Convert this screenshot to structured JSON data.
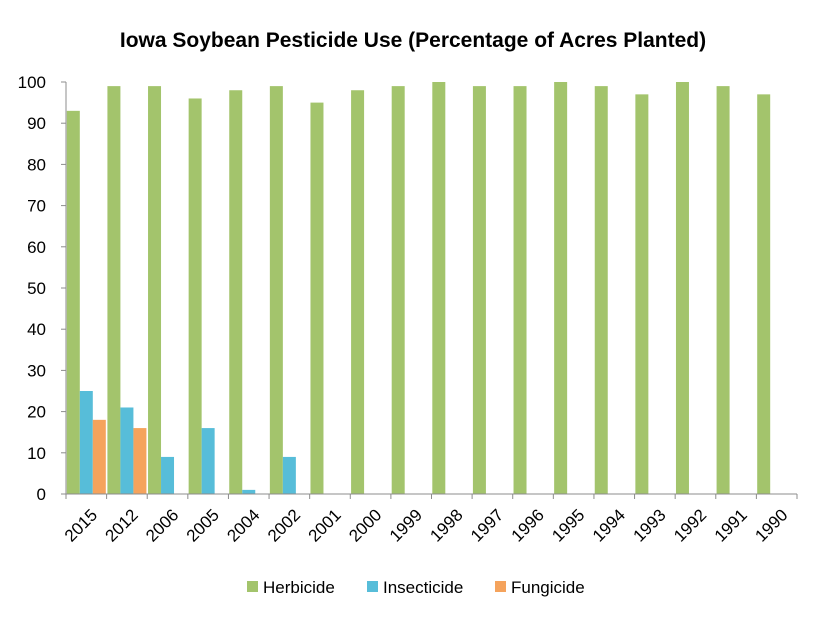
{
  "chart_data": {
    "type": "bar",
    "title": "Iowa Soybean Pesticide Use (Percentage of Acres Planted)",
    "xlabel": "",
    "ylabel": "",
    "ylim": [
      0,
      100
    ],
    "yticks": [
      "0",
      "10",
      "20",
      "30",
      "40",
      "50",
      "60",
      "70",
      "80",
      "90",
      "100"
    ],
    "grid": false,
    "legend_position": "bottom",
    "categories": [
      "2015",
      "2012",
      "2006",
      "2005",
      "2004",
      "2002",
      "2001",
      "2000",
      "1999",
      "1998",
      "1997",
      "1996",
      "1995",
      "1994",
      "1993",
      "1992",
      "1991",
      "1990"
    ],
    "series": [
      {
        "name": "Herbicide",
        "color": "#a3c46c",
        "values": [
          93,
          99,
          99,
          96,
          98,
          99,
          95,
          98,
          99,
          100,
          99,
          99,
          100,
          99,
          97,
          100,
          99,
          97
        ]
      },
      {
        "name": "Insecticide",
        "color": "#57bdd9",
        "values": [
          25,
          21,
          9,
          16,
          1,
          9,
          null,
          null,
          null,
          null,
          null,
          null,
          null,
          null,
          null,
          null,
          null,
          null
        ]
      },
      {
        "name": "Fungicide",
        "color": "#f5a35c",
        "values": [
          18,
          16,
          null,
          null,
          null,
          null,
          null,
          null,
          null,
          null,
          null,
          null,
          null,
          null,
          null,
          null,
          null,
          null
        ]
      }
    ]
  }
}
